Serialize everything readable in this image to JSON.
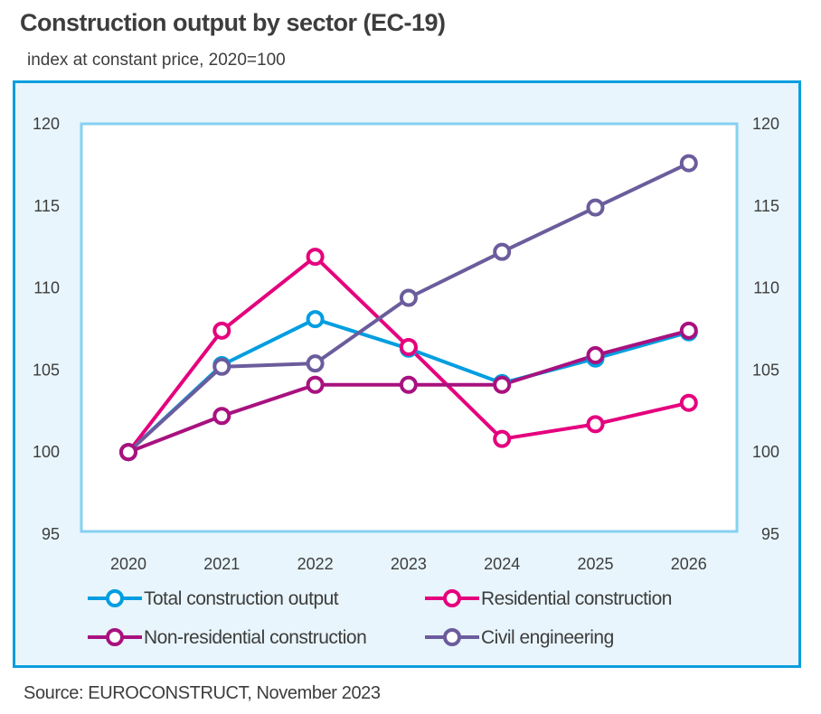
{
  "header": {
    "title": "Construction output by sector (EC-19)",
    "subtitle": "index at constant price, 2020=100"
  },
  "footer": {
    "source": "Source: EUROCONSTRUCT, November 2023"
  },
  "colors": {
    "frame_border": "#0a9edf",
    "frame_background": "#e8f5fc",
    "plot_border": "#86d0f2",
    "plot_background": "#ffffff"
  },
  "chart_data": {
    "type": "line",
    "title": "Construction output by sector (EC-19)",
    "subtitle": "index at constant price, 2020=100",
    "xlabel": "",
    "ylabel": "",
    "x": [
      "2020",
      "2021",
      "2022",
      "2023",
      "2024",
      "2025",
      "2026"
    ],
    "ylim": [
      95,
      120
    ],
    "yticks": [
      95,
      100,
      105,
      110,
      115,
      120
    ],
    "ytick_labels": [
      "95",
      "100",
      "105",
      "110",
      "115",
      "120"
    ],
    "secondary_yaxis_mirrored": true,
    "grid": false,
    "legend_placement": "bottom",
    "series": [
      {
        "name": "Total construction output",
        "color": "#009ee0",
        "values": [
          100,
          105.3,
          108.1,
          106.3,
          104.2,
          105.7,
          107.3
        ]
      },
      {
        "name": "Residential construction",
        "color": "#e5007d",
        "values": [
          100,
          107.4,
          111.9,
          106.4,
          100.8,
          101.7,
          103.0
        ]
      },
      {
        "name": "Non-residential construction",
        "color": "#a8117f",
        "values": [
          100,
          102.2,
          104.1,
          104.1,
          104.1,
          105.9,
          107.4
        ]
      },
      {
        "name": "Civil engineering",
        "color": "#6b5c9c",
        "values": [
          100,
          105.2,
          105.4,
          109.4,
          112.2,
          114.9,
          117.6
        ]
      }
    ]
  }
}
